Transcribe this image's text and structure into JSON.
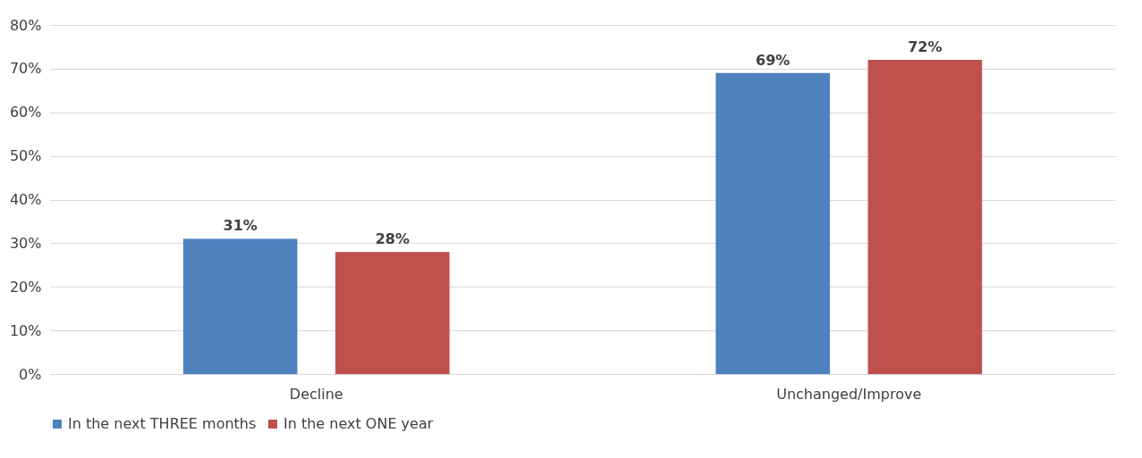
{
  "chart_data": {
    "type": "bar",
    "categories": [
      "Decline",
      "Unchanged/Improve"
    ],
    "series": [
      {
        "name": "In the next THREE months",
        "color": "#4f81bd",
        "values": [
          31,
          69
        ],
        "value_labels": [
          "31%",
          "69%"
        ]
      },
      {
        "name": "In the next ONE year",
        "color": "#c0504d",
        "values": [
          28,
          72
        ],
        "value_labels": [
          "28%",
          "72%"
        ]
      }
    ],
    "ylim": [
      0,
      80
    ],
    "yticks": [
      {
        "value": 0,
        "label": "0%"
      },
      {
        "value": 10,
        "label": "10%"
      },
      {
        "value": 20,
        "label": "20%"
      },
      {
        "value": 30,
        "label": "30%"
      },
      {
        "value": 40,
        "label": "40%"
      },
      {
        "value": 50,
        "label": "50%"
      },
      {
        "value": 60,
        "label": "60%"
      },
      {
        "value": 70,
        "label": "70%"
      },
      {
        "value": 80,
        "label": "80%"
      }
    ],
    "grid": "y",
    "legend": "bottom"
  }
}
